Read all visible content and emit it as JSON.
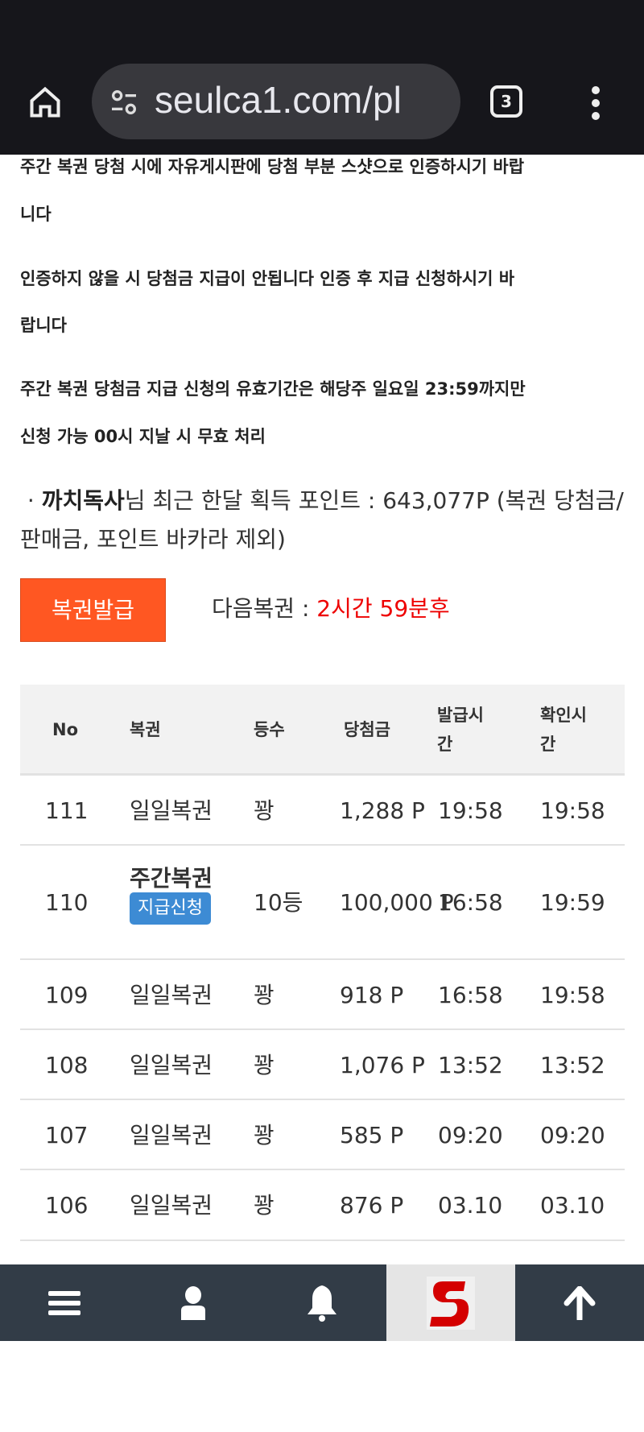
{
  "browser": {
    "url": "seulca1.com/pl",
    "tab_count": "3"
  },
  "notices": [
    "주간 복권 당첨 시에 자유게시판에 당첨 부분 스샷으로 인증하시기 바랍",
    "니다",
    "인증하지 않을 시 당첨금 지급이 안됩니다 인증 후 지급 신청하시기 바",
    "랍니다",
    "주간 복권 당첨금 지급 신청의 유효기간은 해당주 일요일 23:59까지만",
    "신청 가능 00시 지날 시 무효 처리"
  ],
  "points": {
    "bullet": "·",
    "username": "까치독사",
    "text": "님 최근 한달 획득 포인트 : 643,077P (복권 당첨금/판매금, 포인트 바카라 제외)"
  },
  "issue_button": "복권발급",
  "next": {
    "label": "다음복권 : ",
    "value": "2시간 59분후"
  },
  "table": {
    "headers": [
      "No",
      "복권",
      "등수",
      "당첨금",
      "발급시간",
      "확인시간"
    ],
    "rows": [
      {
        "no": "111",
        "type": "일일복권",
        "rank": "꽝",
        "prize": "1,288 P",
        "issued": "19:58",
        "checked": "19:58"
      },
      {
        "no": "110",
        "type": "주간복권",
        "badge": "지급신청",
        "rank": "10등",
        "prize": "100,000 P",
        "issued": "16:58",
        "checked": "19:59"
      },
      {
        "no": "109",
        "type": "일일복권",
        "rank": "꽝",
        "prize": "918 P",
        "issued": "16:58",
        "checked": "19:58"
      },
      {
        "no": "108",
        "type": "일일복권",
        "rank": "꽝",
        "prize": "1,076 P",
        "issued": "13:52",
        "checked": "13:52"
      },
      {
        "no": "107",
        "type": "일일복권",
        "rank": "꽝",
        "prize": "585 P",
        "issued": "09:20",
        "checked": "09:20"
      },
      {
        "no": "106",
        "type": "일일복권",
        "rank": "꽝",
        "prize": "876 P",
        "issued": "03.10",
        "checked": "03.10"
      }
    ]
  },
  "colors": {
    "accent": "#ff5722",
    "red": "#e00000",
    "badge": "#3d8bd4",
    "nav": "#323c47"
  },
  "nav_icons": [
    "menu-icon",
    "user-icon",
    "bell-icon",
    "site-logo",
    "arrow-up-icon"
  ]
}
